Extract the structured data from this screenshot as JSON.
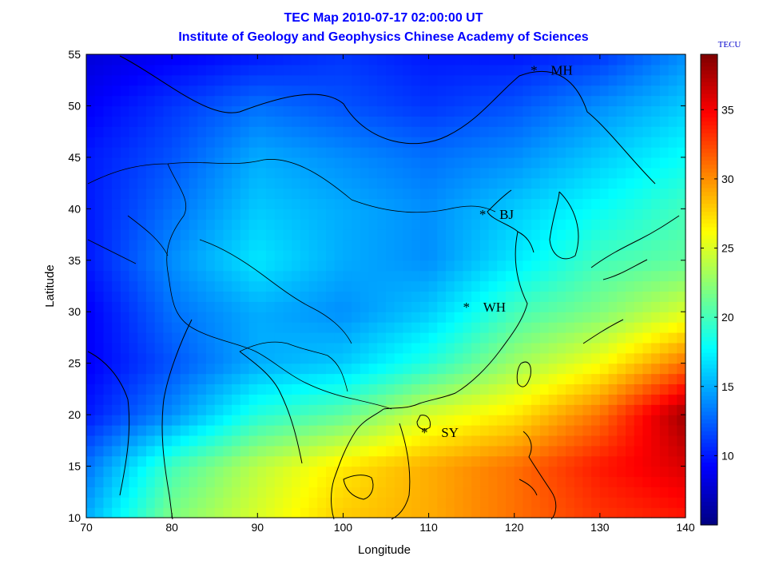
{
  "chart_data": {
    "type": "heatmap",
    "title": "TEC Map 2010-07-17 02:00:00 UT",
    "subtitle": "Institute of Geology and Geophysics Chinese Academy of Sciences",
    "xlabel": "Longitude",
    "ylabel": "Latitude",
    "xlim": [
      70,
      140
    ],
    "ylim": [
      10,
      55
    ],
    "xticks": [
      "70",
      "80",
      "90",
      "100",
      "110",
      "120",
      "130",
      "140"
    ],
    "yticks": [
      "10",
      "15",
      "20",
      "25",
      "30",
      "35",
      "40",
      "45",
      "50",
      "55"
    ],
    "colorbar": {
      "unit": "TECU",
      "range": [
        5,
        39
      ],
      "ticks": [
        "10",
        "15",
        "20",
        "25",
        "30",
        "35"
      ],
      "colormap": "jet"
    },
    "stations": [
      {
        "name": "MH",
        "lon": 122.3,
        "lat": 53.5
      },
      {
        "name": "BJ",
        "lon": 116.3,
        "lat": 39.5
      },
      {
        "name": "WH",
        "lon": 114.4,
        "lat": 30.5
      },
      {
        "name": "SY",
        "lon": 109.5,
        "lat": 18.3
      }
    ],
    "tec_grid": {
      "lons": [
        70,
        80,
        90,
        100,
        110,
        120,
        130,
        140
      ],
      "lats": [
        55,
        50,
        45,
        40,
        35,
        30,
        25,
        20,
        15,
        10
      ],
      "values": [
        [
          8,
          9,
          10,
          11,
          10,
          10,
          11,
          14
        ],
        [
          9,
          11,
          13,
          12,
          11,
          12,
          14,
          16
        ],
        [
          10,
          12,
          15,
          14,
          13,
          14,
          16,
          18
        ],
        [
          10,
          13,
          16,
          15,
          14,
          16,
          18,
          20
        ],
        [
          10,
          14,
          17,
          15,
          14,
          17,
          20,
          21
        ],
        [
          9,
          13,
          15,
          14,
          16,
          20,
          22,
          25
        ],
        [
          9,
          12,
          15,
          16,
          19,
          23,
          26,
          31
        ],
        [
          10,
          14,
          19,
          21,
          25,
          27,
          31,
          38
        ],
        [
          13,
          20,
          24,
          27,
          29,
          31,
          34,
          36
        ],
        [
          15,
          22,
          25,
          28,
          29,
          31,
          33,
          34
        ]
      ]
    }
  }
}
